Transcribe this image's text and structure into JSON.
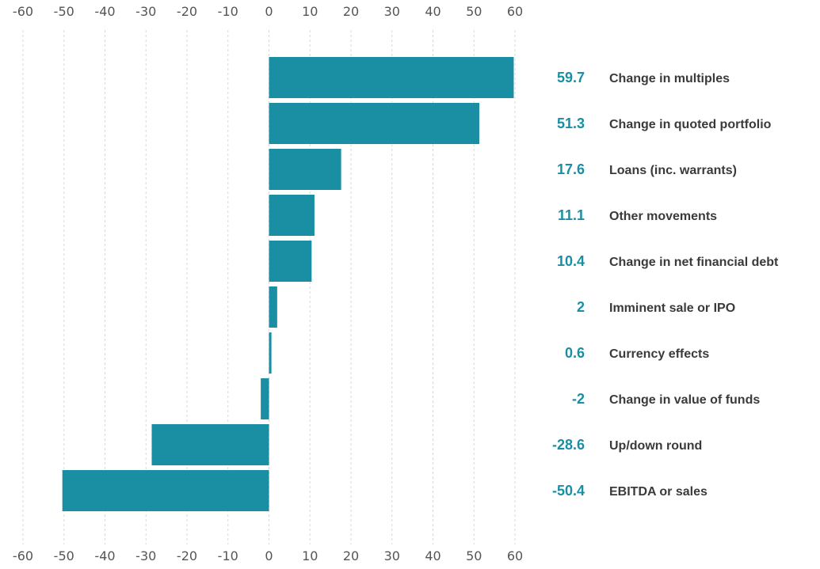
{
  "chart_data": {
    "type": "bar",
    "orientation": "horizontal",
    "categories": [
      "Change in multiples",
      "Change in quoted portfolio",
      "Loans (inc. warrants)",
      "Other movements",
      "Change in net financial debt",
      "Imminent sale or IPO",
      "Currency effects",
      "Change in value of funds",
      "Up/down round",
      "EBITDA or sales"
    ],
    "values": [
      59.7,
      51.3,
      17.6,
      11.1,
      10.4,
      2,
      0.6,
      -2,
      -28.6,
      -50.4
    ],
    "value_labels": [
      "59.7",
      "51.3",
      "17.6",
      "11.1",
      "10.4",
      "2",
      "0.6",
      "-2",
      "-28.6",
      "-50.4"
    ],
    "x_ticks": [
      "-60",
      "-50",
      "-40",
      "-30",
      "-20",
      "-10",
      "0",
      "10",
      "20",
      "30",
      "40",
      "50",
      "60"
    ],
    "xlim": [
      -60,
      60
    ],
    "axis_positions": [
      "top",
      "bottom"
    ],
    "grid": "vertical, dashed",
    "legend": "none",
    "title": "",
    "xlabel": "",
    "ylabel": ""
  },
  "colors": {
    "bar": "#1A8FA3",
    "value_label": "#1A8FA3",
    "category_label": "#3A3A3A",
    "tick_label": "#555555",
    "grid": "#D9D9D9",
    "background": "#FFFFFF"
  }
}
